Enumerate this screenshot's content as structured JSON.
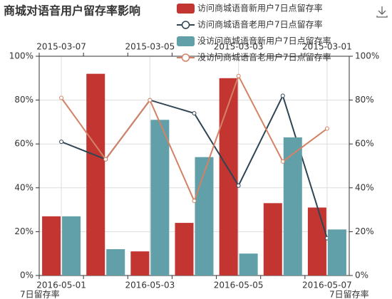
{
  "chart_data": {
    "type": "bar",
    "title": "商城对语音用户留存率影响",
    "categories": [
      "2016-05-01",
      null,
      "2016-05-03",
      null,
      "2016-05-05",
      null,
      "2016-05-07"
    ],
    "top_categories": [
      "2015-03-07",
      null,
      "2015-03-05",
      null,
      "2015-03-03",
      null,
      "2015-03-01"
    ],
    "xlabel": "7日留存率",
    "x2label": "7日留存率",
    "ylim": [
      0,
      100
    ],
    "y2lim": [
      0,
      100
    ],
    "yticks": [
      {
        "value": 0,
        "label": "0%"
      },
      {
        "value": 20,
        "label": "20%"
      },
      {
        "value": 40,
        "label": "40%"
      },
      {
        "value": 60,
        "label": "60%"
      },
      {
        "value": 80,
        "label": "80%"
      },
      {
        "value": 100,
        "label": "100%"
      }
    ],
    "y2ticks": [
      {
        "value": 0,
        "label": "0%"
      },
      {
        "value": 20,
        "label": "20%"
      },
      {
        "value": 40,
        "label": "40%"
      },
      {
        "value": 60,
        "label": "60%"
      },
      {
        "value": 80,
        "label": "80%"
      },
      {
        "value": 100,
        "label": "100%"
      }
    ],
    "grid": true,
    "series": [
      {
        "name": "访问商城语音新用户7日点留存率",
        "type": "bar",
        "color": "#c23531",
        "values": [
          27,
          92,
          11,
          24,
          90,
          33,
          31
        ]
      },
      {
        "name": "访问商城语音老用户7日点留存率",
        "type": "line",
        "x_axis": "top",
        "color": "#2f4554",
        "values": [
          61,
          53,
          80,
          74,
          41,
          82,
          17
        ]
      },
      {
        "name": "没访问商城语音新用户7日点留存率",
        "type": "bar",
        "color": "#61a0a8",
        "values": [
          27,
          12,
          71,
          54,
          10,
          63,
          21
        ]
      },
      {
        "name": "没访问商城语音老用户7日点留存率",
        "type": "line",
        "x_axis": "top",
        "color": "#d48265",
        "values": [
          81,
          53,
          80,
          34,
          91,
          52,
          67
        ]
      }
    ]
  }
}
